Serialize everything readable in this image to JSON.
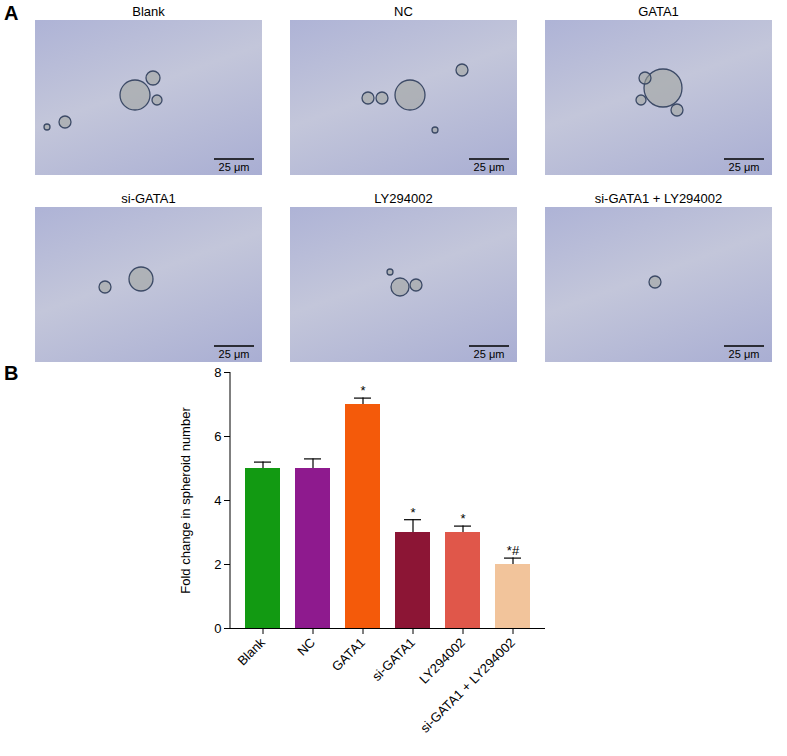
{
  "figure": {
    "panel_labels": [
      "A",
      "B"
    ],
    "images": [
      {
        "title": "Blank",
        "scale_bar": "25 μm"
      },
      {
        "title": "NC",
        "scale_bar": "25 μm"
      },
      {
        "title": "GATA1",
        "scale_bar": "25 μm"
      },
      {
        "title": "si-GATA1",
        "scale_bar": "25 μm"
      },
      {
        "title": "LY294002",
        "scale_bar": "25 μm"
      },
      {
        "title": "si-GATA1 + LY294002",
        "scale_bar": "25 μm"
      }
    ]
  },
  "chart_data": {
    "type": "bar",
    "y_label": "Fold change in spheroid number",
    "categories": [
      "Blank",
      "NC",
      "GATA1",
      "si-GATA1",
      "LY294002",
      "si-GATA1 + LY294002"
    ],
    "values": [
      5,
      5,
      7,
      3,
      3,
      2
    ],
    "errors": [
      0.2,
      0.3,
      0.2,
      0.4,
      0.2,
      0.2
    ],
    "significance": [
      null,
      null,
      "*",
      "*",
      "*",
      "*#"
    ],
    "colors": [
      "#129a12",
      "#8e1a8e",
      "#f45a0a",
      "#8c1535",
      "#e0574a",
      "#f2c49b"
    ],
    "ylim": [
      0,
      8
    ],
    "yticks": [
      0,
      2,
      4,
      6,
      8
    ],
    "grid": false
  }
}
